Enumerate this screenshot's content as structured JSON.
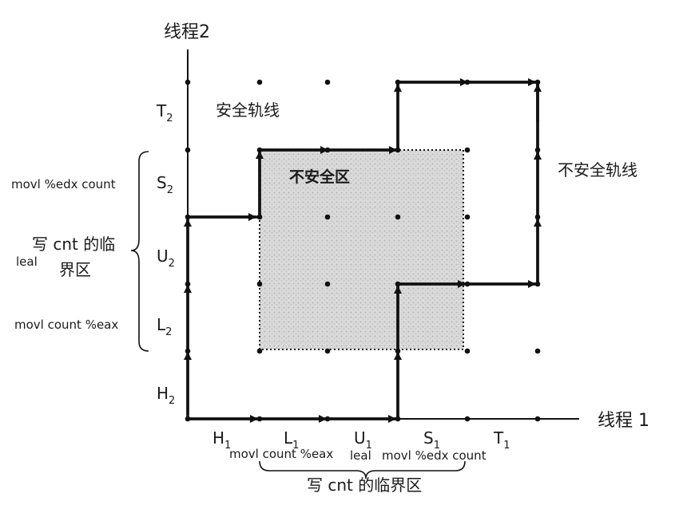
{
  "axes": {
    "y_title": "线程2",
    "x_title": "线程 1"
  },
  "thread1_labels": [
    {
      "main": "H",
      "sub": "1"
    },
    {
      "main": "L",
      "sub": "1"
    },
    {
      "main": "U",
      "sub": "1"
    },
    {
      "main": "S",
      "sub": "1"
    },
    {
      "main": "T",
      "sub": "1"
    }
  ],
  "thread2_labels": [
    {
      "main": "H",
      "sub": "2"
    },
    {
      "main": "L",
      "sub": "2"
    },
    {
      "main": "U",
      "sub": "2"
    },
    {
      "main": "S",
      "sub": "2"
    },
    {
      "main": "T",
      "sub": "2"
    }
  ],
  "thread1_instructions": [
    "movl count %eax",
    "leal",
    "movl %edx count"
  ],
  "thread2_instructions": [
    "movl %edx count",
    "leal",
    "movl count %eax"
  ],
  "thread1_critical": "写 cnt 的临界区",
  "thread2_critical": [
    "写 cnt 的临",
    "界区"
  ],
  "regions": {
    "safe_trajectory": "安全轨线",
    "unsafe_region": "不安全区",
    "unsafe_trajectory": "不安全轨线"
  },
  "colors": {
    "ink": "#111111",
    "unsafe_fill": "#c8c8c8"
  }
}
